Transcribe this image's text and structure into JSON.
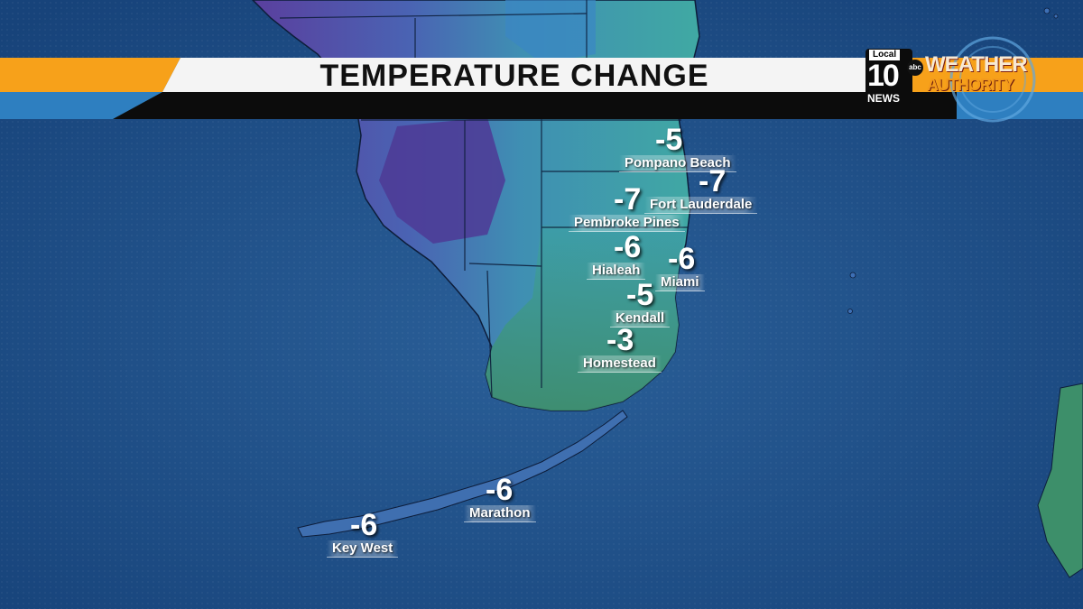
{
  "title": "TEMPERATURE CHANGE",
  "logo": {
    "local": "Local",
    "channel": "10",
    "news": "NEWS",
    "network": "abc",
    "weather": "WEATHER",
    "authority": "AUTHORITY"
  },
  "stations": [
    {
      "name": "Pompano Beach",
      "value": "-5"
    },
    {
      "name": "Fort Lauderdale",
      "value": "-7"
    },
    {
      "name": "Pembroke Pines",
      "value": "-7"
    },
    {
      "name": "Hialeah",
      "value": "-6"
    },
    {
      "name": "Miami",
      "value": "-6"
    },
    {
      "name": "Kendall",
      "value": "-5"
    },
    {
      "name": "Homestead",
      "value": "-3"
    },
    {
      "name": "Marathon",
      "value": "-6"
    },
    {
      "name": "Key West",
      "value": "-6"
    }
  ],
  "colors": {
    "ocean": "#1f4f86",
    "cooling_strong": "#5a3f9e",
    "cooling_mid": "#3b6fb5",
    "cooling_weak": "#3aa3a8",
    "neutral": "#3d8f5e",
    "banner_orange": "#f7a11a",
    "banner_blue": "#2e7fc0"
  }
}
